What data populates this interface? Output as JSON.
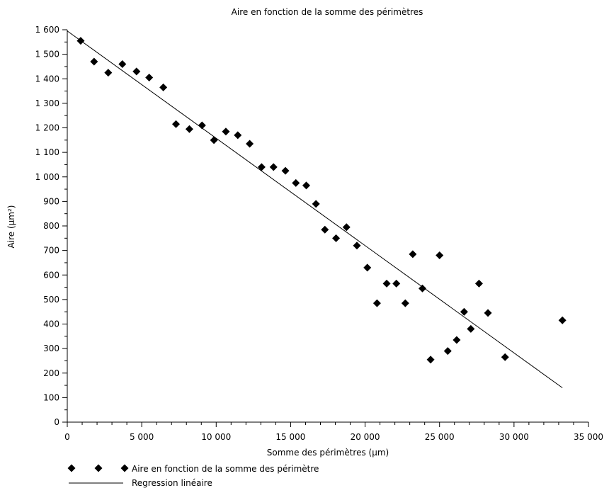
{
  "chart_data": {
    "type": "scatter",
    "title": "Aire en fonction de la somme des périmètres",
    "xlabel": "Somme des périmètres (µm)",
    "ylabel": "Aire (µm²)",
    "xlim": [
      0,
      35000
    ],
    "ylim": [
      0,
      1600
    ],
    "x_ticks": [
      0,
      5000,
      10000,
      15000,
      20000,
      25000,
      30000,
      35000
    ],
    "x_tick_labels": [
      "0",
      "5 000",
      "10 000",
      "15 000",
      "20 000",
      "25 000",
      "30 000",
      "35 000"
    ],
    "y_ticks": [
      0,
      100,
      200,
      300,
      400,
      500,
      600,
      700,
      800,
      900,
      1000,
      1100,
      1200,
      1300,
      1400,
      1500,
      1600
    ],
    "y_tick_labels": [
      "0",
      "100",
      "200",
      "300",
      "400",
      "500",
      "600",
      "700",
      "800",
      "900",
      "1 000",
      "1 100",
      "1 200",
      "1 300",
      "1 400",
      "1 500",
      "1 600"
    ],
    "grid": false,
    "legend_position": "bottom-left",
    "series": [
      {
        "name": "Aire en fonction de la somme des périmètre",
        "marker": "diamond",
        "color": "#000000",
        "points": [
          [
            900,
            1555
          ],
          [
            1800,
            1470
          ],
          [
            2750,
            1425
          ],
          [
            3700,
            1460
          ],
          [
            4650,
            1430
          ],
          [
            5500,
            1405
          ],
          [
            6450,
            1365
          ],
          [
            7300,
            1215
          ],
          [
            8200,
            1195
          ],
          [
            9050,
            1210
          ],
          [
            9850,
            1150
          ],
          [
            10650,
            1185
          ],
          [
            11450,
            1170
          ],
          [
            12250,
            1135
          ],
          [
            13050,
            1040
          ],
          [
            13850,
            1040
          ],
          [
            14650,
            1025
          ],
          [
            15350,
            975
          ],
          [
            16050,
            965
          ],
          [
            16700,
            890
          ],
          [
            17300,
            785
          ],
          [
            18050,
            750
          ],
          [
            18750,
            795
          ],
          [
            19450,
            720
          ],
          [
            20150,
            630
          ],
          [
            20800,
            485
          ],
          [
            21450,
            565
          ],
          [
            22100,
            565
          ],
          [
            22700,
            485
          ],
          [
            23200,
            685
          ],
          [
            23850,
            545
          ],
          [
            24400,
            255
          ],
          [
            25000,
            680
          ],
          [
            25550,
            290
          ],
          [
            26150,
            335
          ],
          [
            26650,
            450
          ],
          [
            27100,
            380
          ],
          [
            27650,
            565
          ],
          [
            28250,
            445
          ],
          [
            29400,
            265
          ],
          [
            33250,
            415
          ]
        ]
      },
      {
        "name": "Regression linéaire",
        "type": "line",
        "color": "#000000",
        "points": [
          [
            0,
            1595
          ],
          [
            33250,
            140
          ]
        ]
      }
    ]
  }
}
